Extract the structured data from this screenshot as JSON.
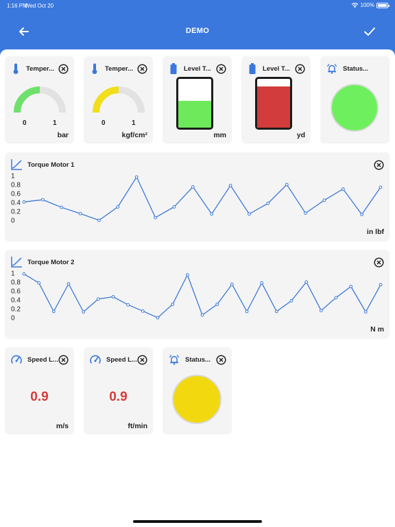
{
  "status_bar": {
    "time": "1:16 PM",
    "date": "Wed Oct 20",
    "battery": "100%"
  },
  "nav": {
    "title": "DEMO",
    "back_icon": "arrow-left-icon",
    "confirm_icon": "check-icon"
  },
  "colors": {
    "header": "#3a78dd",
    "card": "#f4f4f4",
    "line": "#3b78d6",
    "gauge_green": "#6ee06b",
    "gauge_yellow": "#f2de1a",
    "tank_green": "#6ee95b",
    "tank_red": "#d33c3c",
    "led_green": "#6ef05e",
    "led_yellow": "#f2d90f",
    "value_red": "#d73a3a"
  },
  "widgets": {
    "temp1": {
      "title": "Temper...",
      "min": "0",
      "max": "1",
      "unit": "bar",
      "level": 0.5
    },
    "temp2": {
      "title": "Temper...",
      "min": "0",
      "max": "1",
      "unit": "kgf/cm²",
      "level": 0.5
    },
    "level1": {
      "title": "Level T...",
      "unit": "mm",
      "fill": 0.55
    },
    "level2": {
      "title": "Level T...",
      "unit": "yd",
      "fill": 0.85
    },
    "status1": {
      "title": "Status..."
    },
    "status2": {
      "title": "Status..."
    },
    "speed1": {
      "title": "Speed L...",
      "value": "0.9",
      "unit": "m/s"
    },
    "speed2": {
      "title": "Speed L...",
      "value": "0.9",
      "unit": "ft/min"
    }
  },
  "chart_data": [
    {
      "type": "line",
      "title": "Torque Motor 1",
      "unit": "in lbf",
      "yticks": [
        "1",
        "0.8",
        "0.6",
        "0.4",
        "0.2",
        "0"
      ],
      "ylim": [
        0,
        1
      ],
      "values": [
        0.41,
        0.46,
        0.29,
        0.15,
        0.0,
        0.3,
        0.97,
        0.06,
        0.3,
        0.75,
        0.14,
        0.78,
        0.14,
        0.38,
        0.8,
        0.16,
        0.45,
        0.7,
        0.13,
        0.74
      ]
    },
    {
      "type": "line",
      "title": "Torque Motor 2",
      "unit": "N m",
      "yticks": [
        "1",
        "0.8",
        "0.6",
        "0.4",
        "0.2",
        "0"
      ],
      "ylim": [
        0,
        1
      ],
      "values": [
        0.98,
        0.78,
        0.14,
        0.76,
        0.13,
        0.42,
        0.47,
        0.29,
        0.15,
        0.0,
        0.3,
        0.96,
        0.06,
        0.3,
        0.75,
        0.14,
        0.78,
        0.14,
        0.38,
        0.8,
        0.16,
        0.45,
        0.7,
        0.13,
        0.74
      ]
    }
  ]
}
